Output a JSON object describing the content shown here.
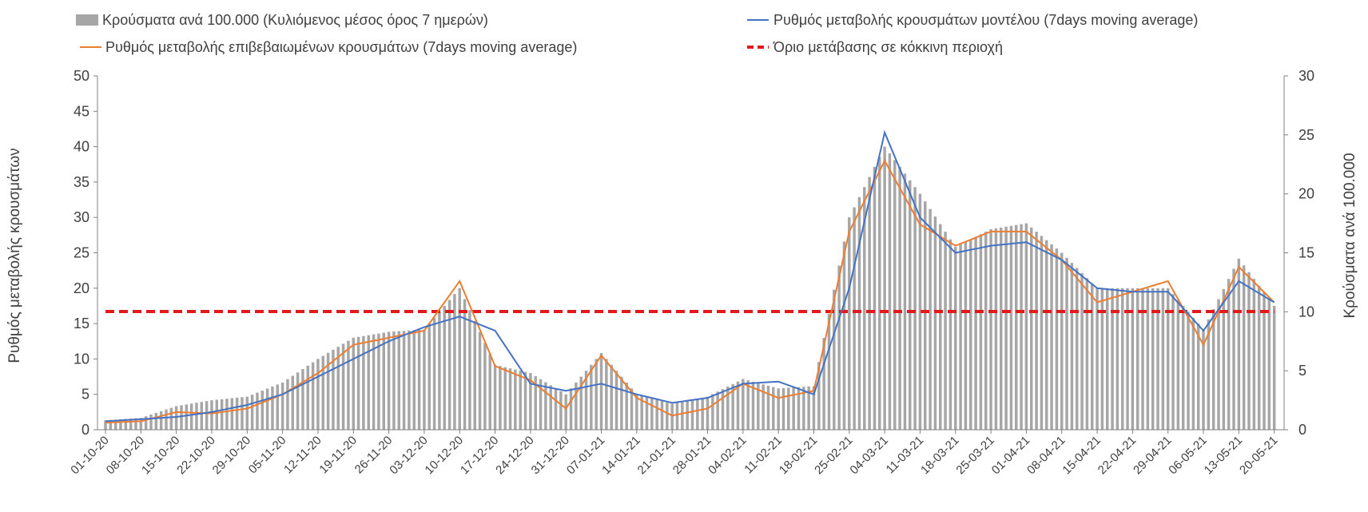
{
  "chart_data": {
    "type": "bar+line",
    "title": "",
    "y_left": {
      "label": "Ρυθμός μεταβολής κρουσμάτων",
      "ticks": [
        "0",
        "5",
        "10",
        "15",
        "20",
        "25",
        "30",
        "35",
        "40",
        "45",
        "50"
      ],
      "range": [
        0,
        50
      ]
    },
    "y_right": {
      "label": "Κρούσματα ανά 100.000",
      "ticks": [
        "0",
        "5",
        "10",
        "15",
        "20",
        "25",
        "30"
      ],
      "range": [
        0,
        30
      ]
    },
    "legend": {
      "placement": "top",
      "items": [
        {
          "key": "bars",
          "label": "Κρούσματα ανά 100.000 (Κυλιόμενος μέσος όρος 7 ημερών)",
          "color": "#a6a6a6"
        },
        {
          "key": "model",
          "label": "Ρυθμός μεταβολής κρουσμάτων μοντέλου (7days moving average)",
          "color": "#4472c4"
        },
        {
          "key": "confirmed",
          "label": "Ρυθμός μεταβολής επιβεβαιωμένων κρουσμάτων (7days moving average)",
          "color": "#ed7d31"
        },
        {
          "key": "threshold",
          "label": "Όριο μετάβασης σε κόκκινη περιοχή",
          "color": "#e31a1c"
        }
      ]
    },
    "x_tick_labels": [
      "01-10-20",
      "08-10-20",
      "15-10-20",
      "22-10-20",
      "29-10-20",
      "05-11-20",
      "12-11-20",
      "19-11-20",
      "26-11-20",
      "03-12-20",
      "10-12-20",
      "17-12-20",
      "24-12-20",
      "31-12-20",
      "07-01-21",
      "14-01-21",
      "21-01-21",
      "28-01-21",
      "04-02-21",
      "11-02-21",
      "18-02-21",
      "25-02-21",
      "04-03-21",
      "11-03-21",
      "18-03-21",
      "25-03-21",
      "01-04-21",
      "08-04-21",
      "15-04-21",
      "22-04-21",
      "29-04-21",
      "06-05-21",
      "13-05-21",
      "20-05-21"
    ],
    "weekly_samples": {
      "bars_per_100k": [
        0.8,
        1.0,
        2.0,
        2.5,
        2.8,
        4.0,
        6.0,
        7.8,
        8.3,
        8.5,
        12.0,
        5.5,
        4.8,
        3.0,
        6.5,
        3.0,
        2.2,
        2.8,
        4.3,
        3.5,
        3.7,
        18.0,
        24.0,
        20.0,
        15.5,
        17.0,
        17.5,
        15.0,
        12.0,
        12.0,
        12.0,
        8.5,
        14.5,
        10.5
      ],
      "model_rate": [
        1.2,
        1.5,
        1.8,
        2.5,
        3.5,
        5.0,
        7.5,
        10.0,
        12.5,
        14.5,
        16.0,
        14.0,
        6.5,
        5.5,
        6.5,
        5.0,
        3.8,
        4.5,
        6.5,
        6.8,
        5.0,
        20.0,
        42.0,
        30.0,
        25.0,
        26.0,
        26.5,
        24.0,
        20.0,
        19.5,
        19.5,
        14.0,
        21.0,
        18.0
      ],
      "confirmed_rate": [
        1.0,
        1.2,
        2.5,
        2.3,
        3.0,
        5.0,
        8.0,
        12.0,
        13.0,
        14.0,
        21.0,
        9.0,
        7.0,
        3.0,
        10.5,
        4.5,
        2.0,
        3.0,
        6.5,
        4.5,
        5.5,
        28.0,
        38.0,
        29.0,
        26.0,
        28.0,
        28.0,
        24.0,
        18.0,
        19.5,
        21.0,
        12.0,
        23.0,
        18.0
      ]
    },
    "threshold_rate": 16.7,
    "grid": false
  }
}
